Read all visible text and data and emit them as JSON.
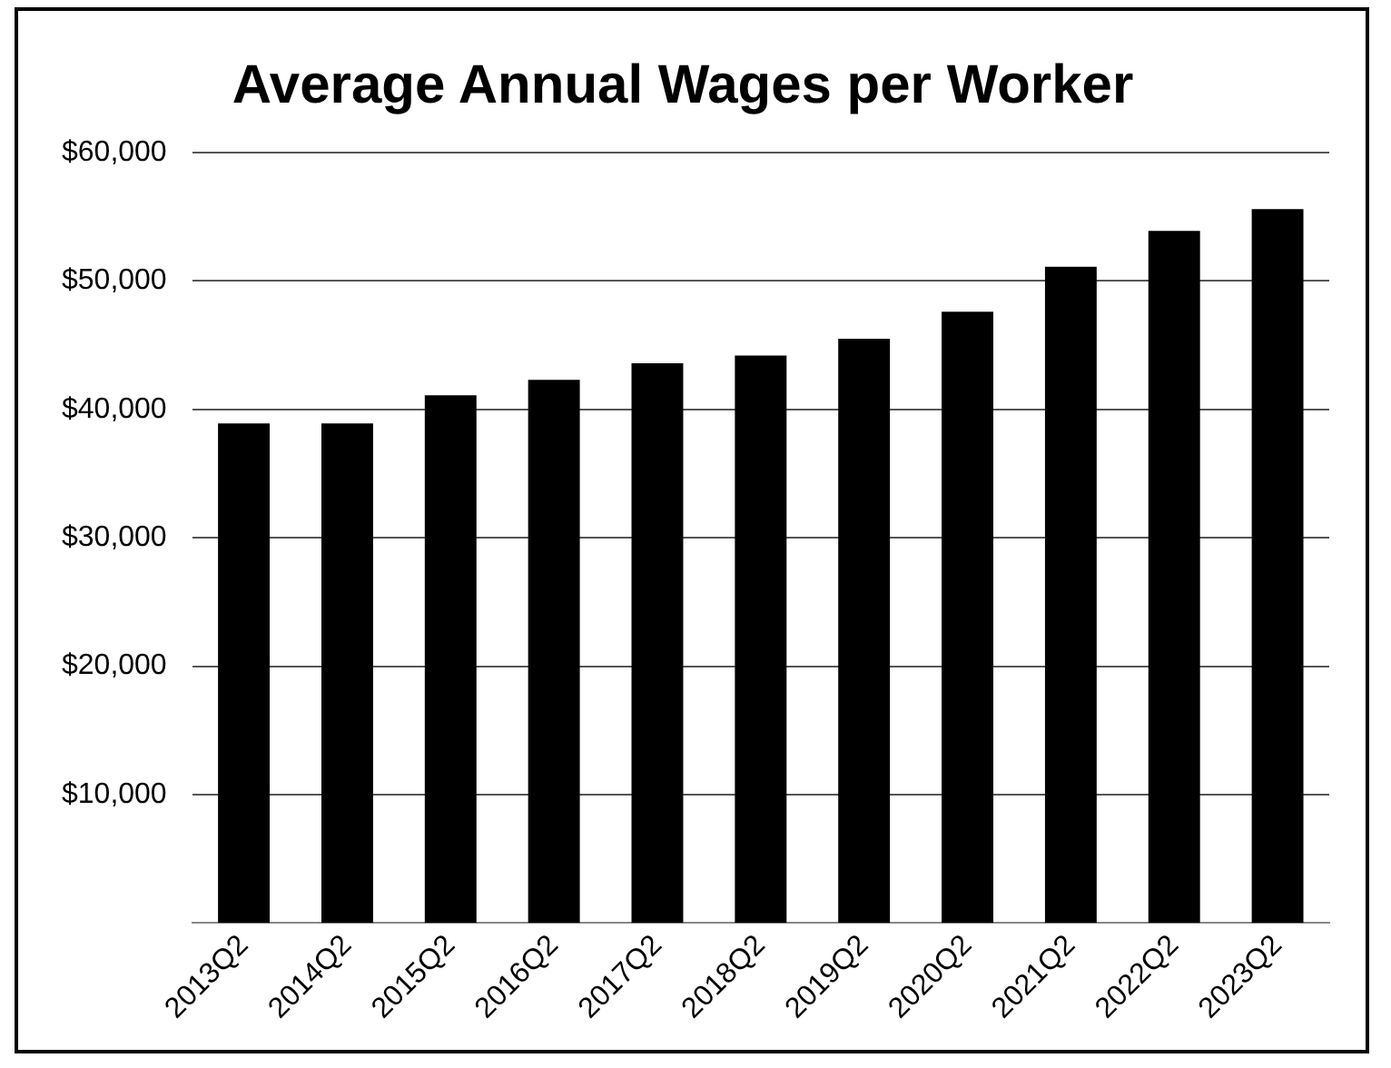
{
  "chart_data": {
    "type": "bar",
    "title": "Average Annual Wages per Worker",
    "categories": [
      "2013Q2",
      "2014Q2",
      "2015Q2",
      "2016Q2",
      "2017Q2",
      "2018Q2",
      "2019Q2",
      "2020Q2",
      "2021Q2",
      "2022Q2",
      "2023Q2"
    ],
    "values": [
      38900,
      38900,
      41100,
      42300,
      43600,
      44200,
      45500,
      47600,
      51100,
      53900,
      55600
    ],
    "color": "#000000",
    "ylim": [
      0,
      60000
    ],
    "yticks": [
      {
        "value": 0,
        "label": null
      },
      {
        "value": 10000,
        "label": "$10,000"
      },
      {
        "value": 20000,
        "label": "$20,000"
      },
      {
        "value": 30000,
        "label": "$30,000"
      },
      {
        "value": 40000,
        "label": "$40,000"
      },
      {
        "value": 50000,
        "label": "$50,000"
      },
      {
        "value": 60000,
        "label": "$60,000"
      }
    ],
    "grid": "y",
    "legend": false
  }
}
